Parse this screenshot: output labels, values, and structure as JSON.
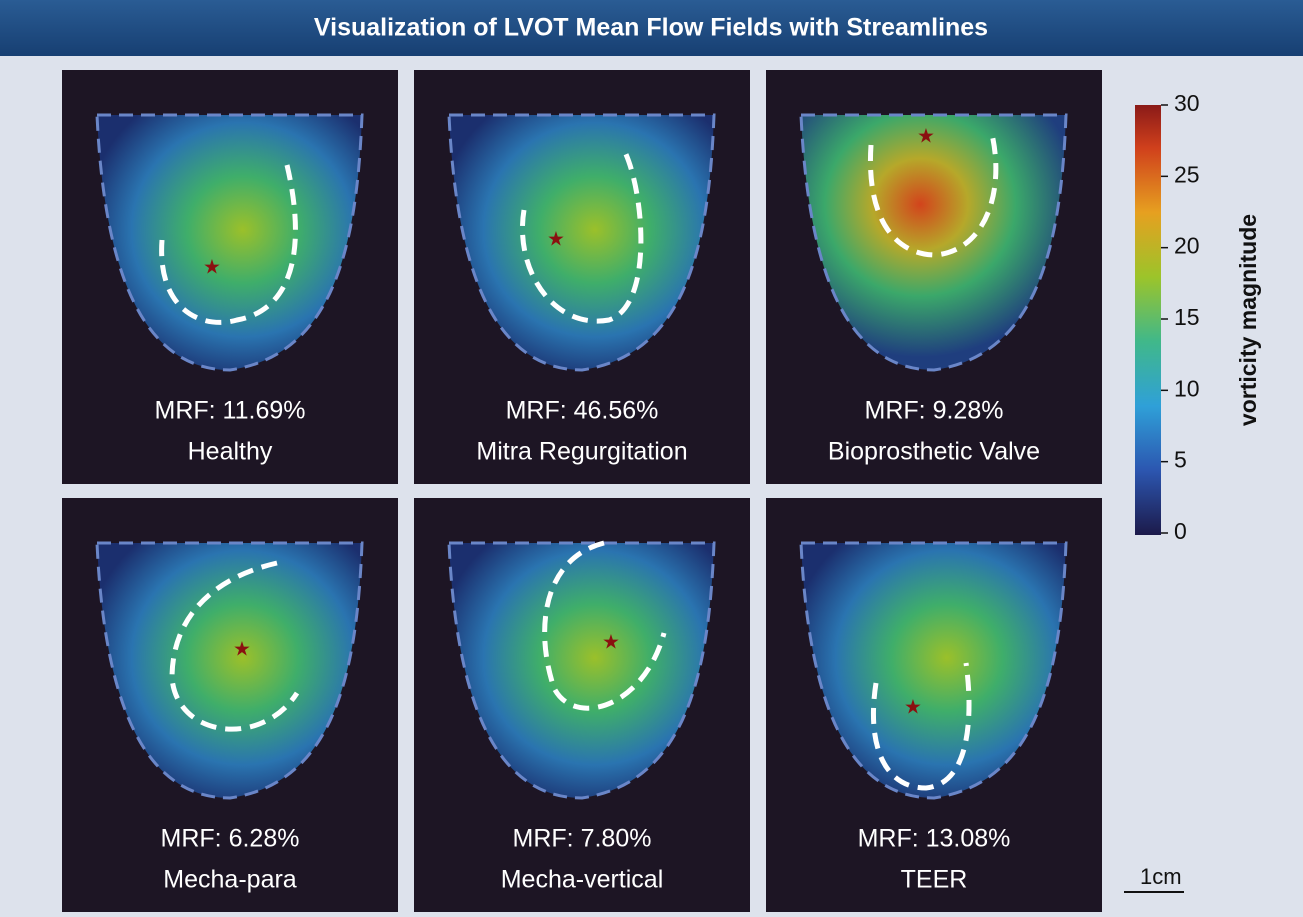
{
  "title": "Visualization of LVOT Mean Flow Fields with Streamlines",
  "panels": [
    {
      "mrf": "MRF: 11.69%",
      "condition": "Healthy"
    },
    {
      "mrf": "MRF: 46.56%",
      "condition": "Mitra Regurgitation"
    },
    {
      "mrf": "MRF: 9.28%",
      "condition": "Bioprosthetic Valve"
    },
    {
      "mrf": "MRF: 6.28%",
      "condition": "Mecha-para"
    },
    {
      "mrf": "MRF: 7.80%",
      "condition": "Mecha-vertical"
    },
    {
      "mrf": "MRF: 13.08%",
      "condition": "TEER"
    }
  ],
  "colorbar": {
    "label": "vorticity magnitude",
    "range": [
      0,
      30
    ],
    "ticks": [
      0,
      5,
      10,
      15,
      20,
      25,
      30
    ]
  },
  "scale_bar": "1cm"
}
